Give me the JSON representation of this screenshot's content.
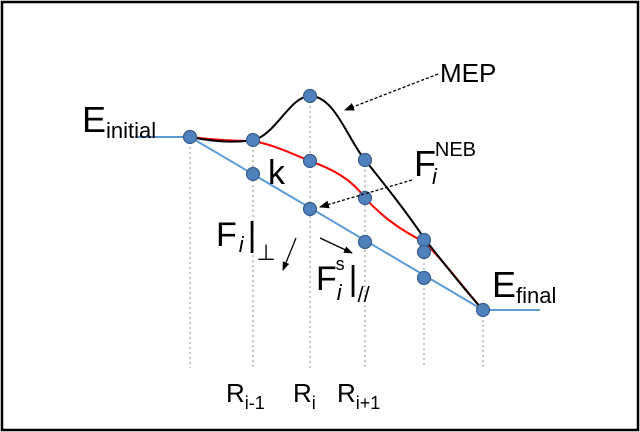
{
  "labels": {
    "mep": "MEP",
    "e_initial": {
      "base": "E",
      "sub": "initial"
    },
    "e_final": {
      "base": "E",
      "sub": "final"
    },
    "f_neb": {
      "base": "F",
      "sub": "i",
      "sup": "NEB"
    },
    "k": "k",
    "f_perp": {
      "base": "F",
      "sub": "i",
      "bar": "|",
      "sub2": "⊥"
    },
    "f_par": {
      "base": "F",
      "sub": "i",
      "sup": "s",
      "bar": "|",
      "sub2": "//"
    },
    "r_prev": {
      "base": "R",
      "sub": "i-1"
    },
    "r_curr": {
      "base": "R",
      "sub": "i"
    },
    "r_next": {
      "base": "R",
      "sub": "i+1"
    }
  },
  "colors": {
    "frame": "#000000",
    "mep_curve": "#000000",
    "neb_path": "#ff0000",
    "straight_path": "#5b9bd5",
    "image_node": "#4f81bd",
    "node_edge": "#385d8a",
    "dashed_guides": "#8c8c8c"
  }
}
